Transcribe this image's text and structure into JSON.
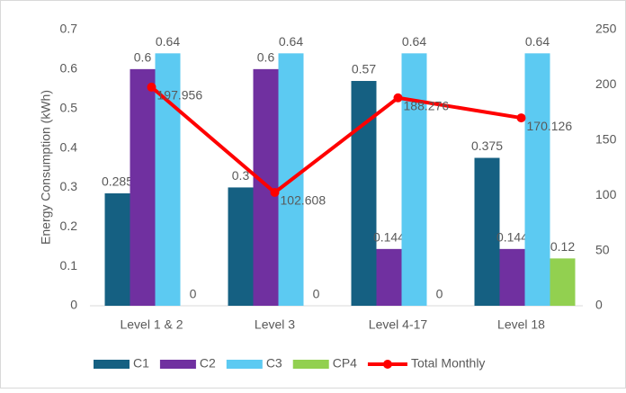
{
  "chart_data": {
    "type": "bar",
    "y_label": "Energy Consumption (kWh)",
    "categories": [
      "Level 1 & 2",
      "Level 3",
      "Level 4-17",
      "Level 18"
    ],
    "series": [
      {
        "name": "C1",
        "color": "#156082",
        "values": [
          0.285,
          0.3,
          0.57,
          0.375
        ]
      },
      {
        "name": "C2",
        "color": "#7030a0",
        "values": [
          0.6,
          0.6,
          0.144,
          0.144
        ]
      },
      {
        "name": "C3",
        "color": "#5ccaf2",
        "values": [
          0.64,
          0.64,
          0.64,
          0.64
        ]
      },
      {
        "name": "CP4",
        "color": "#92d050",
        "values": [
          0,
          0,
          0,
          0.12
        ]
      },
      {
        "name": "Total Monthly",
        "color": "#ff0000",
        "type": "line",
        "axis": "y2",
        "values": [
          197.956,
          102.608,
          188.276,
          170.126
        ]
      }
    ],
    "ylim": [
      0,
      0.7
    ],
    "yticks": [
      0,
      0.1,
      0.2,
      0.3,
      0.4,
      0.5,
      0.6,
      0.7
    ],
    "y2lim": [
      0,
      250
    ],
    "y2ticks": [
      0,
      50,
      100,
      150,
      200,
      250
    ],
    "legend": "bottom"
  }
}
